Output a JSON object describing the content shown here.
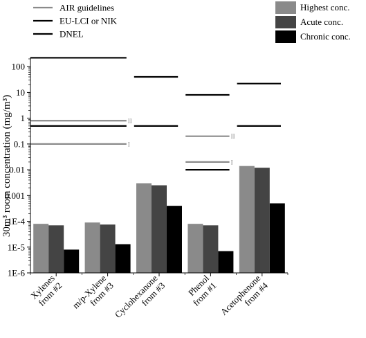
{
  "chart_data": {
    "type": "bar",
    "ylabel": "30m³ room concentration (mg/m³)",
    "yscale": "log",
    "ylim": [
      1e-06,
      200
    ],
    "y_ticks": [
      {
        "value": 100,
        "label": "100"
      },
      {
        "value": 10,
        "label": "10"
      },
      {
        "value": 1,
        "label": "1"
      },
      {
        "value": 0.1,
        "label": "0.1"
      },
      {
        "value": 0.01,
        "label": "0.01"
      },
      {
        "value": 0.001,
        "label": "0.001"
      },
      {
        "value": 0.0001,
        "label": "1E-4"
      },
      {
        "value": 1e-05,
        "label": "1E-5"
      },
      {
        "value": 1e-06,
        "label": "1E-6"
      }
    ],
    "categories": [
      {
        "line1": "Xylenes",
        "line2": "from #2"
      },
      {
        "line1": "m/p-Xylene",
        "line2": "from #3"
      },
      {
        "line1": "Cyclohexanone",
        "line2": "from #3"
      },
      {
        "line1": "Phenol",
        "line2": "from #1"
      },
      {
        "line1": "Acetophenone",
        "line2": "from #4"
      }
    ],
    "series": [
      {
        "name": "Highest conc.",
        "color": "#8a8a8a",
        "values": [
          8e-05,
          9e-05,
          0.003,
          8e-05,
          0.014
        ]
      },
      {
        "name": "Acute conc.",
        "color": "#444444",
        "values": [
          7e-05,
          7.5e-05,
          0.0025,
          7e-05,
          0.012
        ]
      },
      {
        "name": "Chronic conc.",
        "color": "#000000",
        "values": [
          8e-06,
          1.3e-05,
          0.0004,
          7e-06,
          0.0005
        ]
      }
    ],
    "legend_bars": {
      "placement": "top-right"
    },
    "legend_lines": {
      "placement": "top-left",
      "items": [
        {
          "name": "AIR guidelines",
          "color": "#8a8a8a"
        },
        {
          "name": "EU-LCI or NIK",
          "color": "#000000"
        },
        {
          "name": "DNEL",
          "color": "#000000"
        }
      ]
    },
    "reference_lines": [
      {
        "categories": [
          0,
          1
        ],
        "value": 220,
        "color": "#000000"
      },
      {
        "categories": [
          0,
          1
        ],
        "value": 0.8,
        "color": "#8a8a8a",
        "label": "II"
      },
      {
        "categories": [
          0,
          1
        ],
        "value": 0.5,
        "color": "#000000"
      },
      {
        "categories": [
          0,
          1
        ],
        "value": 0.1,
        "color": "#8a8a8a",
        "label": "I"
      },
      {
        "categories": [
          2
        ],
        "value": 40,
        "color": "#000000"
      },
      {
        "categories": [
          2
        ],
        "value": 0.5,
        "color": "#000000"
      },
      {
        "categories": [
          3
        ],
        "value": 8,
        "color": "#000000"
      },
      {
        "categories": [
          3
        ],
        "value": 0.2,
        "color": "#8a8a8a",
        "label": "II"
      },
      {
        "categories": [
          3
        ],
        "value": 0.02,
        "color": "#8a8a8a",
        "label": "I"
      },
      {
        "categories": [
          3
        ],
        "value": 0.01,
        "color": "#000000"
      },
      {
        "categories": [
          4
        ],
        "value": 22,
        "color": "#000000"
      },
      {
        "categories": [
          4
        ],
        "value": 0.5,
        "color": "#000000"
      }
    ]
  }
}
